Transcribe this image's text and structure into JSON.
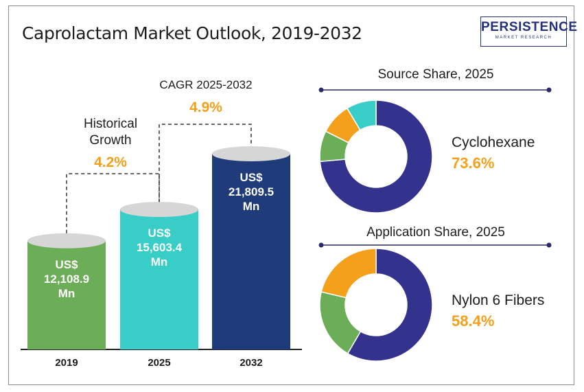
{
  "title": "Caprolactam Market Outlook, 2019-2032",
  "logo": {
    "name": "PERSISTENCE",
    "tagline": "MARKET RESEARCH"
  },
  "chart_data": [
    {
      "type": "bar",
      "categories": [
        "2019",
        "2025",
        "2032"
      ],
      "values": [
        12108.9,
        15603.4,
        21809.5
      ],
      "value_labels": [
        [
          "US$",
          "12,108.9",
          "Mn"
        ],
        [
          "US$",
          "15,603.4",
          "Mn"
        ],
        [
          "US$",
          "21,809.5",
          "Mn"
        ]
      ],
      "colors": [
        "#6cad58",
        "#39cdc8",
        "#1f3b7a"
      ],
      "annotations": [
        {
          "label": [
            "Historical",
            "Growth"
          ],
          "value": "4.2%"
        },
        {
          "label": [
            "CAGR 2025-2032"
          ],
          "value": "4.9%"
        }
      ]
    },
    {
      "type": "pie",
      "title": "Source Share, 2025",
      "highlight_label": "Cyclohexane",
      "highlight_value": "73.6%",
      "values": [
        73.6,
        8.8,
        9.0,
        8.6
      ],
      "colors": [
        "#33328c",
        "#6cad58",
        "#f5a01a",
        "#39cdc8"
      ]
    },
    {
      "type": "pie",
      "title": "Application Share, 2025",
      "highlight_label": "Nylon 6 Fibers",
      "highlight_value": "58.4%",
      "values": [
        58.4,
        20.3,
        21.3
      ],
      "colors": [
        "#33328c",
        "#6cad58",
        "#f5a01a"
      ]
    }
  ],
  "colors": {
    "accent": "#f5a01a",
    "text": "#1c1c1c",
    "navy": "#23307a"
  }
}
